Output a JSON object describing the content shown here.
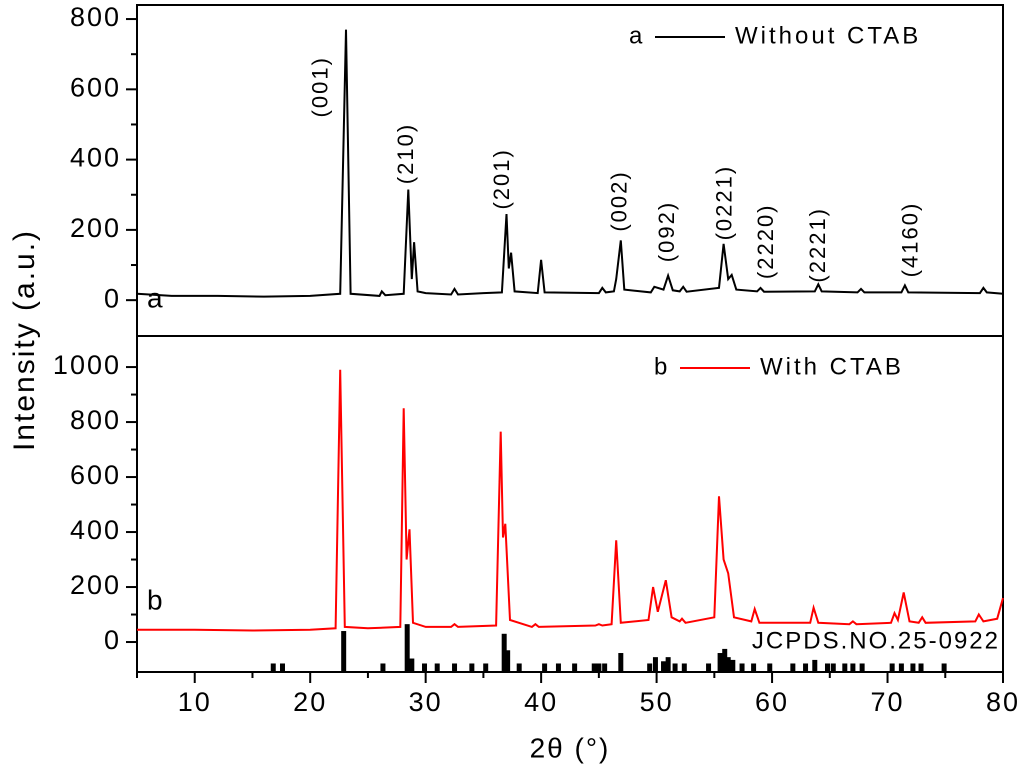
{
  "shared_y_label": "Intensity (a.u.)",
  "chart_data": [
    {
      "type": "line",
      "panel_label": "a",
      "legend": "upper right",
      "xlim": [
        5,
        80
      ],
      "ylim": [
        -102,
        840
      ],
      "yticks": [
        0,
        200,
        400,
        600,
        800
      ],
      "yminorticks": [
        100,
        300,
        500,
        700
      ],
      "series": [
        {
          "name": "Without CTAB",
          "color": "#000000",
          "x": [
            5,
            8,
            12,
            16,
            20,
            22.6,
            23.1,
            23.5,
            26,
            26.2,
            26.5,
            28.1,
            28.5,
            28.8,
            29.0,
            29.3,
            30,
            32.2,
            32.5,
            32.8,
            35,
            36.6,
            37.0,
            37.2,
            37.4,
            37.7,
            39.7,
            40.0,
            40.3,
            45,
            45.3,
            45.6,
            46.3,
            46.5,
            46.9,
            47.2,
            49.5,
            49.8,
            50.6,
            51.0,
            51.4,
            52.0,
            52.3,
            52.6,
            55.4,
            55.8,
            56.2,
            56.5,
            56.9,
            58.7,
            59,
            59.3,
            63.7,
            64,
            64.3,
            67.4,
            67.7,
            68,
            71.2,
            71.5,
            71.8,
            78,
            78.3,
            78.6,
            80
          ],
          "values": [
            18,
            12,
            12,
            10,
            12,
            18,
            770,
            18,
            12,
            25,
            14,
            18,
            315,
            60,
            165,
            25,
            20,
            16,
            32,
            16,
            20,
            22,
            245,
            90,
            135,
            25,
            20,
            115,
            22,
            20,
            35,
            22,
            25,
            60,
            170,
            30,
            22,
            38,
            30,
            70,
            28,
            25,
            38,
            24,
            35,
            160,
            60,
            72,
            30,
            25,
            35,
            24,
            25,
            45,
            25,
            22,
            32,
            22,
            22,
            42,
            22,
            20,
            35,
            22,
            18
          ]
        }
      ],
      "annotations": [
        {
          "text": "(001)",
          "x": 21.0,
          "y": 520
        },
        {
          "text": "(210)",
          "x": 28.4,
          "y": 330
        },
        {
          "text": "(201)",
          "x": 36.7,
          "y": 258
        },
        {
          "text": "(002)",
          "x": 46.9,
          "y": 195
        },
        {
          "text": "(092)",
          "x": 51.0,
          "y": 108
        },
        {
          "text": "(0221)",
          "x": 56.0,
          "y": 170
        },
        {
          "text": "(2220)",
          "x": 59.6,
          "y": 60
        },
        {
          "text": "(2221)",
          "x": 64.1,
          "y": 50
        },
        {
          "text": "(4160)",
          "x": 72.1,
          "y": 65
        }
      ]
    },
    {
      "type": "line",
      "panel_label": "b",
      "legend": "upper right",
      "xlim": [
        5,
        80
      ],
      "xticks": [
        10,
        20,
        30,
        40,
        50,
        60,
        70,
        80
      ],
      "xminorticks": [
        5,
        15,
        25,
        35,
        45,
        55,
        65,
        75
      ],
      "x_label": "2θ (°)",
      "ylim": [
        -109,
        1113
      ],
      "yticks": [
        0,
        200,
        400,
        600,
        800,
        1000
      ],
      "yminorticks": [
        100,
        300,
        500,
        700,
        900
      ],
      "series": [
        {
          "name": "With CTAB",
          "color": "#ff0000",
          "x": [
            5,
            10,
            15,
            20,
            22.2,
            22.6,
            23.0,
            25,
            27.8,
            28.1,
            28.35,
            28.6,
            28.9,
            30,
            32.2,
            32.5,
            32.8,
            36.1,
            36.5,
            36.7,
            36.9,
            37.3,
            39.2,
            39.5,
            39.8,
            44.7,
            45,
            45.3,
            46.1,
            46.5,
            46.9,
            49.3,
            49.7,
            50.1,
            50.8,
            51.3,
            52.0,
            52.2,
            52.5,
            55.0,
            55.4,
            55.8,
            56.2,
            56.7,
            58.2,
            58.5,
            58.9,
            63.3,
            63.6,
            64.0,
            66.7,
            67,
            67.3,
            70.3,
            70.6,
            70.9,
            71.4,
            71.9,
            72.7,
            73,
            73.3,
            77.6,
            77.9,
            78.3,
            79.5,
            80
          ],
          "values": [
            45,
            45,
            42,
            45,
            50,
            990,
            55,
            50,
            55,
            850,
            300,
            410,
            70,
            55,
            55,
            65,
            55,
            60,
            765,
            380,
            430,
            80,
            55,
            65,
            55,
            60,
            65,
            60,
            65,
            370,
            70,
            80,
            200,
            110,
            225,
            90,
            75,
            85,
            70,
            90,
            530,
            300,
            250,
            90,
            75,
            120,
            70,
            70,
            125,
            70,
            65,
            75,
            65,
            70,
            105,
            80,
            180,
            75,
            70,
            90,
            70,
            75,
            100,
            75,
            85,
            160
          ]
        }
      ],
      "reference": {
        "name": "JCPDS.NO.25-0922",
        "color": "#000000",
        "x": [
          16.8,
          17.6,
          22.9,
          26.3,
          28.4,
          28.8,
          29.9,
          31,
          32.5,
          34,
          35.2,
          36.8,
          37.1,
          38.1,
          40.3,
          41.5,
          42.9,
          44.6,
          45.0,
          45.5,
          46.9,
          49.4,
          49.9,
          50.6,
          51.0,
          51.6,
          52.4,
          54.5,
          55.5,
          55.9,
          56.2,
          56.6,
          57.4,
          58.4,
          59.8,
          61.8,
          62.9,
          63.7,
          64.8,
          65.3,
          66.3,
          67.0,
          67.8,
          70.4,
          71.2,
          72.2,
          72.9,
          74.9
        ],
        "values": [
          -78,
          -78,
          40,
          -78,
          65,
          -60,
          -78,
          -78,
          -78,
          -78,
          -78,
          30,
          -30,
          -78,
          -78,
          -78,
          -78,
          -78,
          -78,
          -78,
          -40,
          -78,
          -55,
          -70,
          -55,
          -78,
          -78,
          -78,
          -40,
          -25,
          -55,
          -65,
          -78,
          -78,
          -78,
          -78,
          -78,
          -65,
          -78,
          -78,
          -78,
          -78,
          -78,
          -78,
          -78,
          -78,
          -78,
          -78
        ]
      }
    }
  ]
}
